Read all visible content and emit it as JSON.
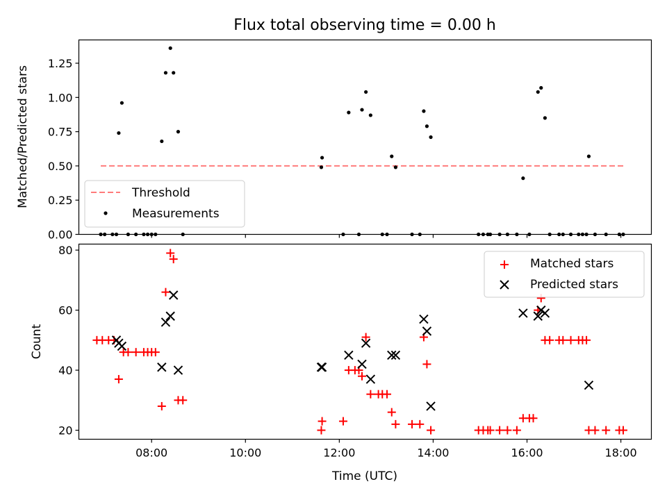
{
  "chart_data": [
    {
      "type": "scatter",
      "title": "Flux total observing time = 0.00 h",
      "xlabel": "",
      "ylabel": "Matched/Predicted stars",
      "xlim": [
        "06:27",
        "18:39"
      ],
      "ylim": [
        0,
        1.42
      ],
      "yticks": [
        "0.00",
        "0.25",
        "0.50",
        "0.75",
        "1.00",
        "1.25"
      ],
      "legend_position": "bottom-left",
      "legend": [
        "Threshold",
        "Measurements"
      ],
      "threshold": {
        "name": "Threshold",
        "value": 0.5,
        "x_from": "06:55",
        "x_to": "18:05",
        "color": "#ff7b7b"
      },
      "series": [
        {
          "name": "Measurements",
          "color": "#000000",
          "points": [
            [
              "06:55",
              0.0
            ],
            [
              "07:00",
              0.0
            ],
            [
              "07:10",
              0.0
            ],
            [
              "07:15",
              0.0
            ],
            [
              "07:18",
              0.74
            ],
            [
              "07:22",
              0.96
            ],
            [
              "07:30",
              0.0
            ],
            [
              "07:40",
              0.0
            ],
            [
              "07:50",
              0.0
            ],
            [
              "07:55",
              0.0
            ],
            [
              "08:00",
              0.0
            ],
            [
              "08:05",
              0.0
            ],
            [
              "08:13",
              0.68
            ],
            [
              "08:18",
              1.18
            ],
            [
              "08:24",
              1.36
            ],
            [
              "08:28",
              1.18
            ],
            [
              "08:34",
              0.75
            ],
            [
              "08:40",
              0.0
            ],
            [
              "11:37",
              0.49
            ],
            [
              "11:38",
              0.56
            ],
            [
              "12:05",
              0.0
            ],
            [
              "12:12",
              0.89
            ],
            [
              "12:25",
              0.0
            ],
            [
              "12:29",
              0.91
            ],
            [
              "12:34",
              1.04
            ],
            [
              "12:40",
              0.87
            ],
            [
              "12:55",
              0.0
            ],
            [
              "13:01",
              0.0
            ],
            [
              "13:07",
              0.57
            ],
            [
              "13:12",
              0.49
            ],
            [
              "13:33",
              0.0
            ],
            [
              "13:43",
              0.0
            ],
            [
              "13:48",
              0.9
            ],
            [
              "13:52",
              0.79
            ],
            [
              "13:57",
              0.71
            ],
            [
              "14:58",
              0.0
            ],
            [
              "15:04",
              0.0
            ],
            [
              "15:10",
              0.0
            ],
            [
              "15:13",
              0.0
            ],
            [
              "15:25",
              0.0
            ],
            [
              "15:35",
              0.0
            ],
            [
              "15:47",
              0.0
            ],
            [
              "15:55",
              0.41
            ],
            [
              "16:03",
              0.0
            ],
            [
              "16:14",
              1.04
            ],
            [
              "16:18",
              1.07
            ],
            [
              "16:23",
              0.85
            ],
            [
              "16:29",
              0.0
            ],
            [
              "16:41",
              0.0
            ],
            [
              "16:46",
              0.0
            ],
            [
              "16:56",
              0.0
            ],
            [
              "17:06",
              0.0
            ],
            [
              "17:11",
              0.0
            ],
            [
              "17:16",
              0.0
            ],
            [
              "17:19",
              0.57
            ],
            [
              "17:27",
              0.0
            ],
            [
              "17:41",
              0.0
            ],
            [
              "17:58",
              0.0
            ],
            [
              "18:03",
              0.0
            ]
          ]
        }
      ]
    },
    {
      "type": "scatter",
      "title": "",
      "xlabel": "Time (UTC)",
      "ylabel": "Count",
      "xlim": [
        "06:27",
        "18:39"
      ],
      "ylim": [
        17,
        82
      ],
      "xticks": [
        "08:00",
        "10:00",
        "12:00",
        "14:00",
        "16:00",
        "18:00"
      ],
      "yticks": [
        "20",
        "40",
        "60",
        "80"
      ],
      "legend_position": "top-right",
      "legend": [
        "Matched stars",
        "Predicted stars"
      ],
      "series": [
        {
          "name": "Matched stars",
          "marker": "plus",
          "color": "#ff0000",
          "points": [
            [
              "06:50",
              50
            ],
            [
              "06:57",
              50
            ],
            [
              "07:05",
              50
            ],
            [
              "07:12",
              50
            ],
            [
              "07:18",
              37
            ],
            [
              "07:24",
              46
            ],
            [
              "07:30",
              46
            ],
            [
              "07:40",
              46
            ],
            [
              "07:50",
              46
            ],
            [
              "07:55",
              46
            ],
            [
              "08:00",
              46
            ],
            [
              "08:05",
              46
            ],
            [
              "08:13",
              28
            ],
            [
              "08:18",
              66
            ],
            [
              "08:24",
              79
            ],
            [
              "08:28",
              77
            ],
            [
              "08:34",
              30
            ],
            [
              "08:40",
              30
            ],
            [
              "11:37",
              20
            ],
            [
              "11:38",
              23
            ],
            [
              "12:05",
              23
            ],
            [
              "12:12",
              40
            ],
            [
              "12:20",
              40
            ],
            [
              "12:25",
              40
            ],
            [
              "12:29",
              38
            ],
            [
              "12:34",
              51
            ],
            [
              "12:40",
              32
            ],
            [
              "12:50",
              32
            ],
            [
              "12:55",
              32
            ],
            [
              "13:01",
              32
            ],
            [
              "13:07",
              26
            ],
            [
              "13:12",
              22
            ],
            [
              "13:33",
              22
            ],
            [
              "13:43",
              22
            ],
            [
              "13:48",
              51
            ],
            [
              "13:52",
              42
            ],
            [
              "13:57",
              20
            ],
            [
              "14:58",
              20
            ],
            [
              "15:04",
              20
            ],
            [
              "15:10",
              20
            ],
            [
              "15:13",
              20
            ],
            [
              "15:25",
              20
            ],
            [
              "15:35",
              20
            ],
            [
              "15:47",
              20
            ],
            [
              "15:55",
              24
            ],
            [
              "16:03",
              24
            ],
            [
              "16:08",
              24
            ],
            [
              "16:14",
              60
            ],
            [
              "16:18",
              64
            ],
            [
              "16:23",
              50
            ],
            [
              "16:29",
              50
            ],
            [
              "16:41",
              50
            ],
            [
              "16:46",
              50
            ],
            [
              "16:56",
              50
            ],
            [
              "17:06",
              50
            ],
            [
              "17:11",
              50
            ],
            [
              "17:16",
              50
            ],
            [
              "17:19",
              20
            ],
            [
              "17:27",
              20
            ],
            [
              "17:41",
              20
            ],
            [
              "17:58",
              20
            ],
            [
              "18:03",
              20
            ]
          ]
        },
        {
          "name": "Predicted stars",
          "marker": "x",
          "color": "#000000",
          "points": [
            [
              "07:15",
              50
            ],
            [
              "07:18",
              49
            ],
            [
              "07:22",
              48
            ],
            [
              "08:13",
              41
            ],
            [
              "08:18",
              56
            ],
            [
              "08:24",
              58
            ],
            [
              "08:28",
              65
            ],
            [
              "08:34",
              40
            ],
            [
              "11:37",
              41
            ],
            [
              "11:38",
              41
            ],
            [
              "12:12",
              45
            ],
            [
              "12:29",
              42
            ],
            [
              "12:34",
              49
            ],
            [
              "12:40",
              37
            ],
            [
              "13:07",
              45
            ],
            [
              "13:12",
              45
            ],
            [
              "13:48",
              57
            ],
            [
              "13:52",
              53
            ],
            [
              "13:57",
              28
            ],
            [
              "15:55",
              59
            ],
            [
              "16:14",
              58
            ],
            [
              "16:18",
              60
            ],
            [
              "16:23",
              59
            ],
            [
              "17:19",
              35
            ]
          ]
        }
      ]
    }
  ]
}
